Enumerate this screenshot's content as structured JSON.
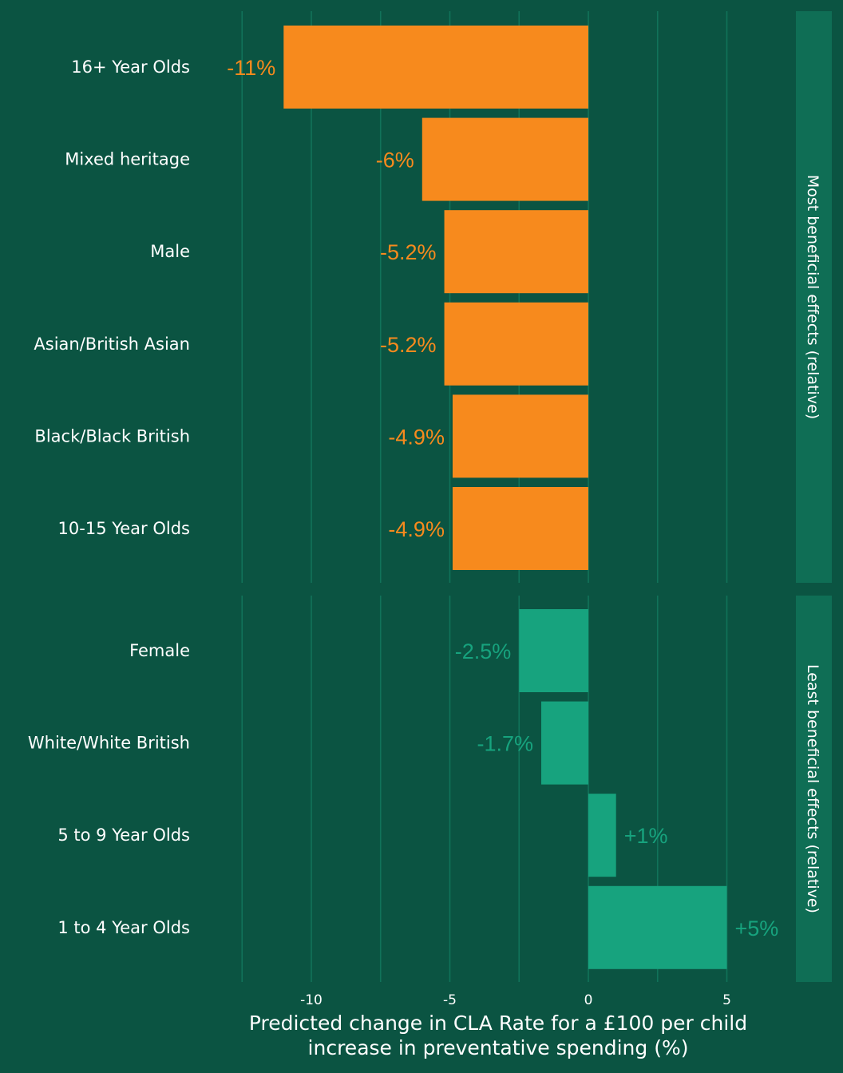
{
  "chart_data": {
    "type": "bar",
    "orientation": "horizontal",
    "xlabel_line1": "Predicted change in CLA Rate for a £100 per child",
    "xlabel_line2": "increase in preventative spending (%)",
    "xticks": [
      -10,
      -5,
      0,
      5
    ],
    "xlim": [
      -12.5,
      6.2
    ],
    "grid": true,
    "panels": [
      {
        "strip": "Most beneficial effects (relative)",
        "color": "#f78a1d",
        "bars": [
          {
            "category": "16+ Year Olds",
            "value": -11,
            "label": "-11%"
          },
          {
            "category": "Mixed heritage",
            "value": -6,
            "label": "-6%"
          },
          {
            "category": "Male",
            "value": -5.2,
            "label": "-5.2%"
          },
          {
            "category": "Asian/British Asian",
            "value": -5.2,
            "label": "-5.2%"
          },
          {
            "category": "Black/Black British",
            "value": -4.9,
            "label": "-4.9%"
          },
          {
            "category": "10-15 Year Olds",
            "value": -4.9,
            "label": "-4.9%"
          }
        ]
      },
      {
        "strip": "Least beneficial effects (relative)",
        "color": "#17a37e",
        "bars": [
          {
            "category": "Female",
            "value": -2.5,
            "label": "-2.5%"
          },
          {
            "category": "White/White British",
            "value": -1.7,
            "label": "-1.7%"
          },
          {
            "category": "5 to 9 Year Olds",
            "value": 1,
            "label": "+1%"
          },
          {
            "category": "1 to 4 Year Olds",
            "value": 5,
            "label": "+5%"
          }
        ]
      }
    ]
  },
  "colors": {
    "background": "#0b5442",
    "grid": "#11735a",
    "strip": "#0f6e55",
    "text": "#ffffff"
  }
}
